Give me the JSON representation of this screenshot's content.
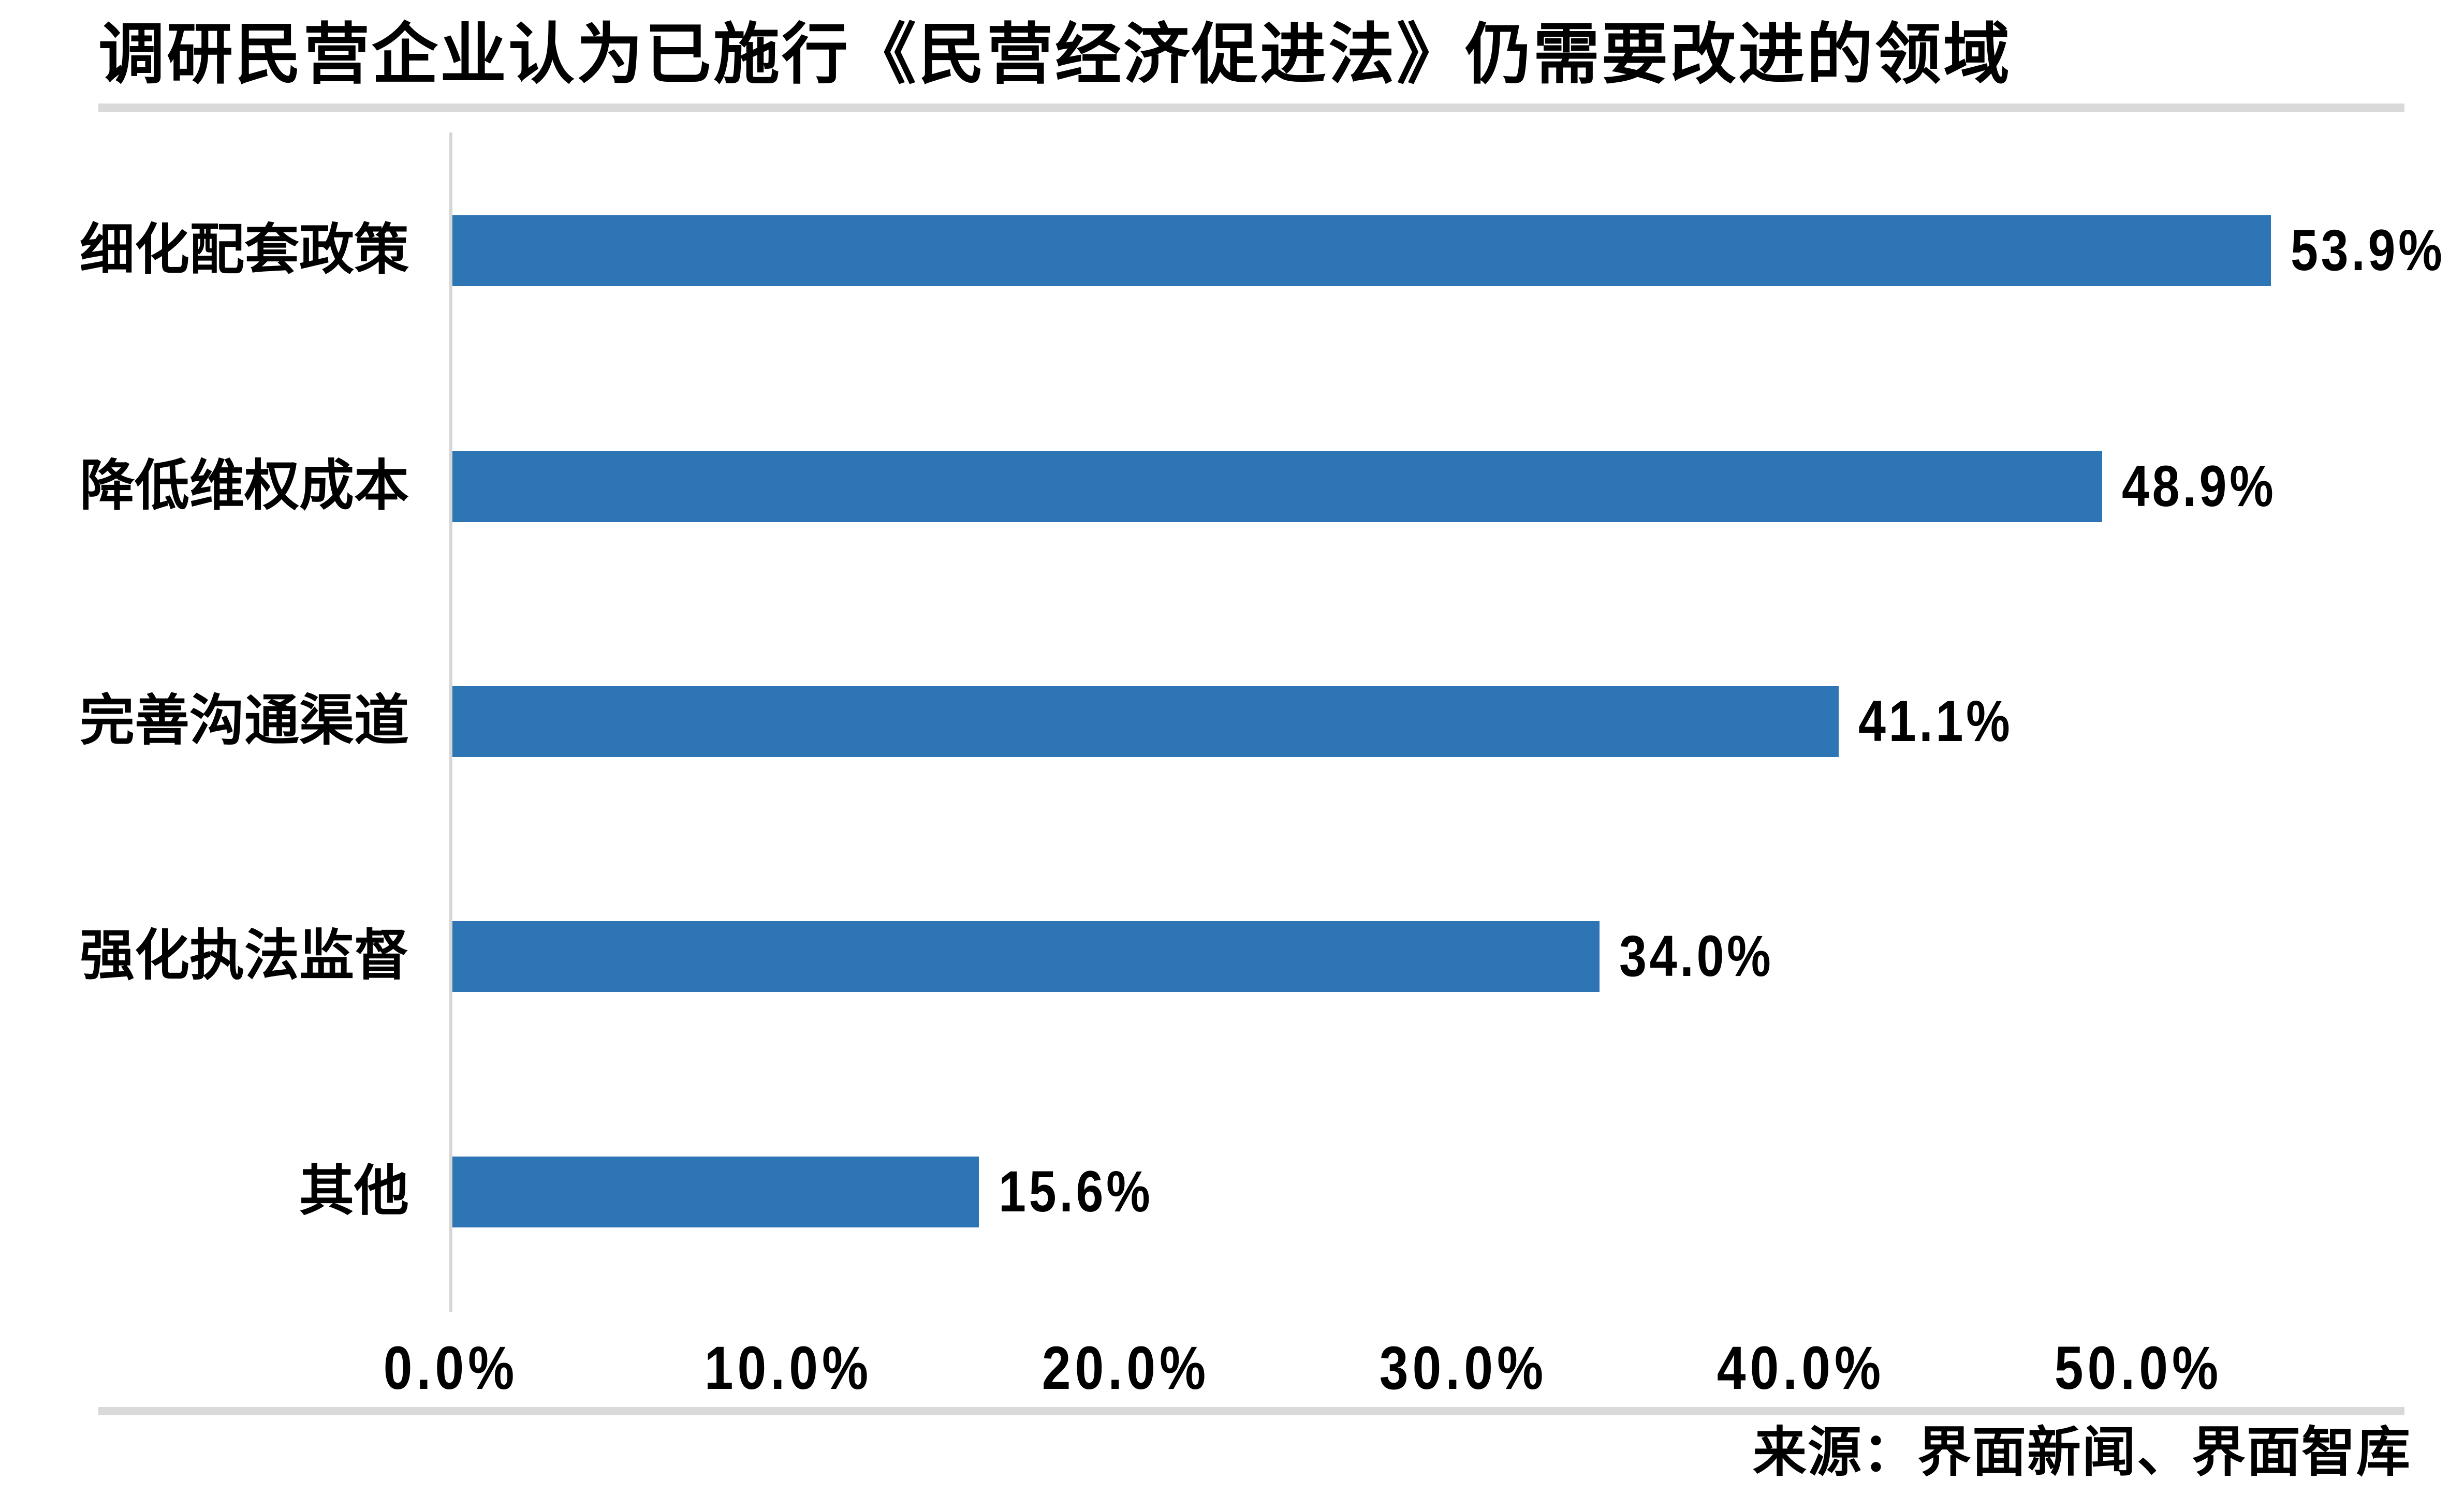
{
  "title": "调研民营企业认为已施行《民营经济促进法》仍需要改进的领域",
  "source": "来源：界面新闻、界面智库",
  "chart_data": {
    "type": "bar",
    "orientation": "horizontal",
    "title": "调研民营企业认为已施行《民营经济促进法》仍需要改进的领域",
    "categories": [
      "细化配套政策",
      "降低维权成本",
      "完善沟通渠道",
      "强化执法监督",
      "其他"
    ],
    "values": [
      53.9,
      48.9,
      41.1,
      34.0,
      15.6
    ],
    "value_labels": [
      "53.9%",
      "48.9%",
      "41.1%",
      "34.0%",
      "15.6%"
    ],
    "x_ticks": [
      "0.0%",
      "10.0%",
      "20.0%",
      "30.0%",
      "40.0%",
      "50.0%"
    ],
    "x_tick_values": [
      0,
      10,
      20,
      30,
      40,
      50
    ],
    "xlim": [
      0,
      60
    ],
    "xlabel": "",
    "ylabel": "",
    "grid": false,
    "legend": false,
    "data_labels_position": "outside-end",
    "bar_color": "#2E75B6",
    "axis_color": "#D6D6D6",
    "rule_color": "#D9D9D9",
    "text_color": "#000000"
  }
}
